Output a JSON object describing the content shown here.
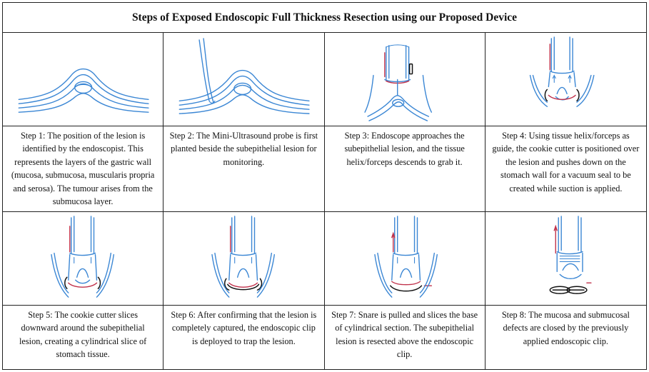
{
  "title": "Steps of Exposed Endoscopic Full Thickness Resection using our Proposed Device",
  "steps": [
    {
      "caption": "Step 1: The position of the lesion is identified by the endoscopist. This represents the layers of the gastric wall (mucosa, submucosa, muscularis propria and serosa). The tumour arises from the submucosa layer.",
      "icon": "gastric-wall-lesion-sketch"
    },
    {
      "caption": "Step 2: The Mini-Ultrasound probe is first planted beside the subepithelial lesion for monitoring.",
      "icon": "ultrasound-probe-sketch"
    },
    {
      "caption": "Step 3: Endoscope approaches the subepithelial lesion, and the tissue helix/forceps descends to grab it.",
      "icon": "endoscope-approach-sketch"
    },
    {
      "caption": "Step 4: Using tissue helix/forceps as guide, the cookie cutter is positioned over the lesion and pushes down on the stomach wall for a vacuum seal to be created while suction is applied.",
      "icon": "cookie-cutter-seal-sketch"
    },
    {
      "caption": "Step 5: The cookie cutter slices downward around the subepithelial lesion, creating a cylindrical slice of stomach tissue.",
      "icon": "cookie-cutter-slice-sketch"
    },
    {
      "caption": "Step 6: After confirming that the lesion is completely captured, the endoscopic clip is deployed to trap the lesion.",
      "icon": "endoscopic-clip-sketch"
    },
    {
      "caption": "Step 7: Snare is pulled and slices the base of cylindrical section. The subepithelial lesion is resected above the endoscopic clip.",
      "icon": "snare-resection-sketch"
    },
    {
      "caption": "Step 8: The mucosa and submucosal defects are closed by the previously applied endoscopic clip.",
      "icon": "defect-closure-sketch"
    }
  ],
  "colors": {
    "sketch_blue": "#3a86d4",
    "sketch_red": "#c0304a",
    "border": "#222222"
  }
}
